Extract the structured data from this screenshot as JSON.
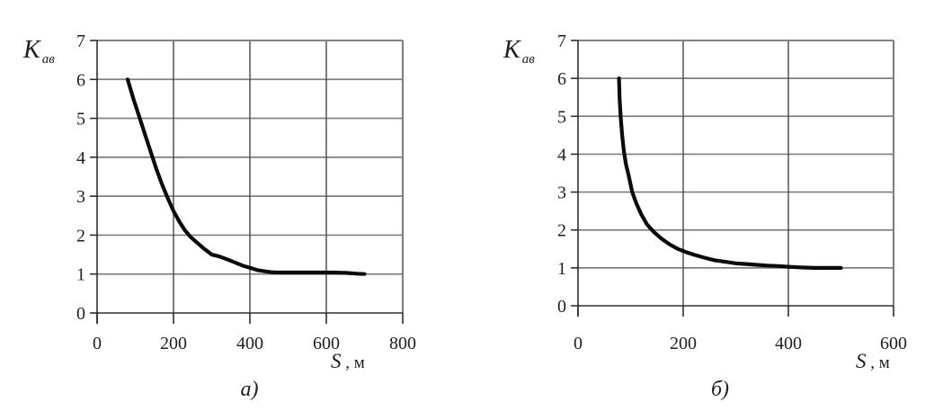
{
  "colors": {
    "background": "#ffffff",
    "grid_horizontal": "#7f7f7f",
    "grid_vertical": "#474747",
    "axis": "#2e2e2e",
    "curve": "#0b0b0b",
    "text": "#1f1f1f"
  },
  "chart_data": [
    {
      "id": "chart-a",
      "type": "line",
      "caption": "а)",
      "ylabel": {
        "main": "K",
        "sub": "ав"
      },
      "xlabel": {
        "main": "S",
        "suffix": " , м"
      },
      "xlim": [
        0,
        800
      ],
      "ylim": [
        0,
        7
      ],
      "x_ticks": [
        "0",
        "200",
        "400",
        "600",
        "800"
      ],
      "y_ticks": [
        "0",
        "1",
        "2",
        "3",
        "4",
        "5",
        "6",
        "7"
      ],
      "grid": "on",
      "x": [
        80,
        95,
        110,
        125,
        140,
        155,
        170,
        185,
        200,
        215,
        230,
        245,
        260,
        280,
        300,
        320,
        340,
        360,
        380,
        400,
        420,
        440,
        455,
        470,
        500,
        540,
        580,
        620,
        650,
        680,
        700
      ],
      "y": [
        6.0,
        5.5,
        5.05,
        4.6,
        4.15,
        3.7,
        3.3,
        2.95,
        2.62,
        2.35,
        2.12,
        1.95,
        1.82,
        1.65,
        1.5,
        1.45,
        1.38,
        1.3,
        1.22,
        1.16,
        1.1,
        1.07,
        1.05,
        1.04,
        1.04,
        1.04,
        1.04,
        1.04,
        1.03,
        1.01,
        1.0
      ]
    },
    {
      "id": "chart-b",
      "type": "line",
      "caption": "б)",
      "ylabel": {
        "main": "K",
        "sub": "ав"
      },
      "xlabel": {
        "main": "S",
        "suffix": " , м"
      },
      "xlim": [
        0,
        600
      ],
      "ylim": [
        0,
        7
      ],
      "x_ticks": [
        "0",
        "200",
        "400",
        "600"
      ],
      "y_ticks": [
        "0",
        "1",
        "2",
        "3",
        "4",
        "5",
        "6",
        "7"
      ],
      "grid": "on",
      "x": [
        78,
        79,
        81,
        84,
        87,
        91,
        96,
        103,
        111,
        120,
        131,
        144,
        158,
        174,
        190,
        205,
        220,
        240,
        260,
        280,
        300,
        320,
        340,
        360,
        380,
        400,
        425,
        450,
        475,
        500
      ],
      "y": [
        6.0,
        5.5,
        5.0,
        4.5,
        4.1,
        3.75,
        3.45,
        3.0,
        2.7,
        2.42,
        2.15,
        1.95,
        1.78,
        1.62,
        1.5,
        1.42,
        1.35,
        1.27,
        1.2,
        1.16,
        1.12,
        1.1,
        1.08,
        1.06,
        1.05,
        1.03,
        1.01,
        1.0,
        1.0,
        1.0
      ]
    }
  ]
}
